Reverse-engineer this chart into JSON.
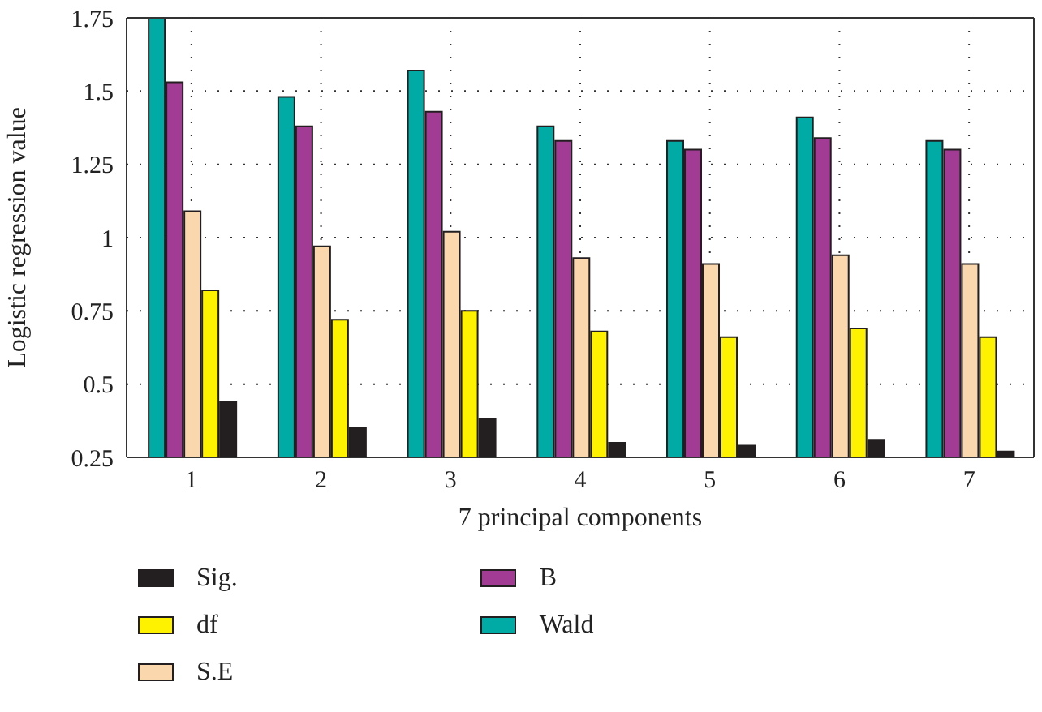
{
  "chart_data": {
    "type": "bar",
    "xlabel": "7 principal components",
    "ylabel": "Logistic regression value",
    "categories": [
      "1",
      "2",
      "3",
      "4",
      "5",
      "6",
      "7"
    ],
    "series": [
      {
        "name": "Wald",
        "color": "#00aaa5",
        "values": [
          1.75,
          1.48,
          1.57,
          1.38,
          1.33,
          1.41,
          1.33
        ]
      },
      {
        "name": "B",
        "color": "#a23b94",
        "values": [
          1.53,
          1.38,
          1.43,
          1.33,
          1.3,
          1.34,
          1.3
        ]
      },
      {
        "name": "S.E",
        "color": "#fad7ad",
        "values": [
          1.09,
          0.97,
          1.02,
          0.93,
          0.91,
          0.94,
          0.91
        ]
      },
      {
        "name": "df",
        "color": "#fff200",
        "values": [
          0.82,
          0.72,
          0.75,
          0.68,
          0.66,
          0.69,
          0.66
        ]
      },
      {
        "name": "Sig.",
        "color": "#231f20",
        "values": [
          0.44,
          0.35,
          0.38,
          0.3,
          0.29,
          0.31,
          0.27
        ]
      }
    ],
    "ylim": [
      0.25,
      1.75
    ],
    "yticks": [
      0.25,
      0.5,
      0.75,
      1,
      1.25,
      1.5,
      1.75
    ],
    "grid": true,
    "legend": "bottom"
  }
}
